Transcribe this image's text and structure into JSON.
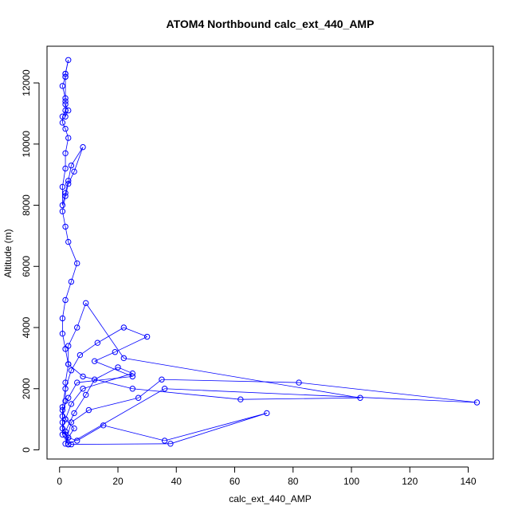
{
  "chart_data": {
    "type": "scatter",
    "title": "ATOM4 Northbound calc_ext_440_AMP",
    "xlabel": "calc_ext_440_AMP",
    "ylabel": "Altitude (m)",
    "xlim": [
      -4.3,
      148.6
    ],
    "ylim": [
      -300,
      13200
    ],
    "x_ticks": [
      0,
      20,
      40,
      60,
      80,
      100,
      120,
      140
    ],
    "y_ticks": [
      0,
      2000,
      4000,
      6000,
      8000,
      10000,
      12000
    ],
    "x_tick_labels": [
      "0",
      "20",
      "40",
      "60",
      "80",
      "100",
      "120",
      "140"
    ],
    "y_tick_labels": [
      "0",
      "2000",
      "4000",
      "6000",
      "8000",
      "10000",
      "12000"
    ],
    "grid": false,
    "legend": "none",
    "marker": "open-circle",
    "connect_points": true,
    "series": [
      {
        "color": "#0000ff",
        "x": [
          3,
          2,
          5,
          9,
          12,
          20,
          25,
          8,
          4,
          2,
          1,
          3,
          6,
          15,
          36,
          71,
          38,
          4,
          2,
          1,
          1,
          2,
          4,
          7,
          13,
          22,
          30,
          19,
          12,
          25,
          6,
          3,
          1,
          2,
          5,
          3,
          2,
          4,
          10,
          27,
          35,
          82,
          143,
          36,
          3,
          1,
          1,
          2,
          2,
          3,
          3,
          6,
          9,
          22,
          103,
          62,
          25,
          8,
          3,
          2,
          1,
          1,
          2,
          4,
          6,
          3,
          2,
          1,
          2,
          3,
          5,
          8,
          4,
          3,
          2,
          1,
          1,
          2,
          2,
          3,
          2,
          1,
          1,
          2,
          2,
          3,
          2,
          2,
          1,
          2,
          2,
          3,
          2,
          2,
          2
        ],
        "y": [
          180,
          600,
          1200,
          1800,
          2300,
          2700,
          2500,
          2000,
          1500,
          1000,
          700,
          400,
          300,
          800,
          300,
          1200,
          200,
          180,
          500,
          900,
          1400,
          2000,
          2600,
          3100,
          3500,
          4000,
          3700,
          3200,
          2900,
          2400,
          2200,
          1700,
          1300,
          1000,
          700,
          400,
          200,
          900,
          1300,
          1700,
          2300,
          2200,
          1550,
          2000,
          180,
          500,
          1100,
          1600,
          2200,
          2800,
          3400,
          4000,
          4800,
          3000,
          1700,
          1650,
          2000,
          2400,
          2800,
          3300,
          3800,
          4300,
          4900,
          5500,
          6100,
          6800,
          7300,
          7800,
          8300,
          8700,
          9100,
          9900,
          9300,
          8800,
          8400,
          8000,
          8600,
          9200,
          9700,
          10200,
          10500,
          10700,
          10900,
          11100,
          11300,
          11100,
          10900,
          11500,
          11900,
          12200,
          12300,
          12750,
          12300,
          12200,
          11400
        ]
      }
    ]
  }
}
